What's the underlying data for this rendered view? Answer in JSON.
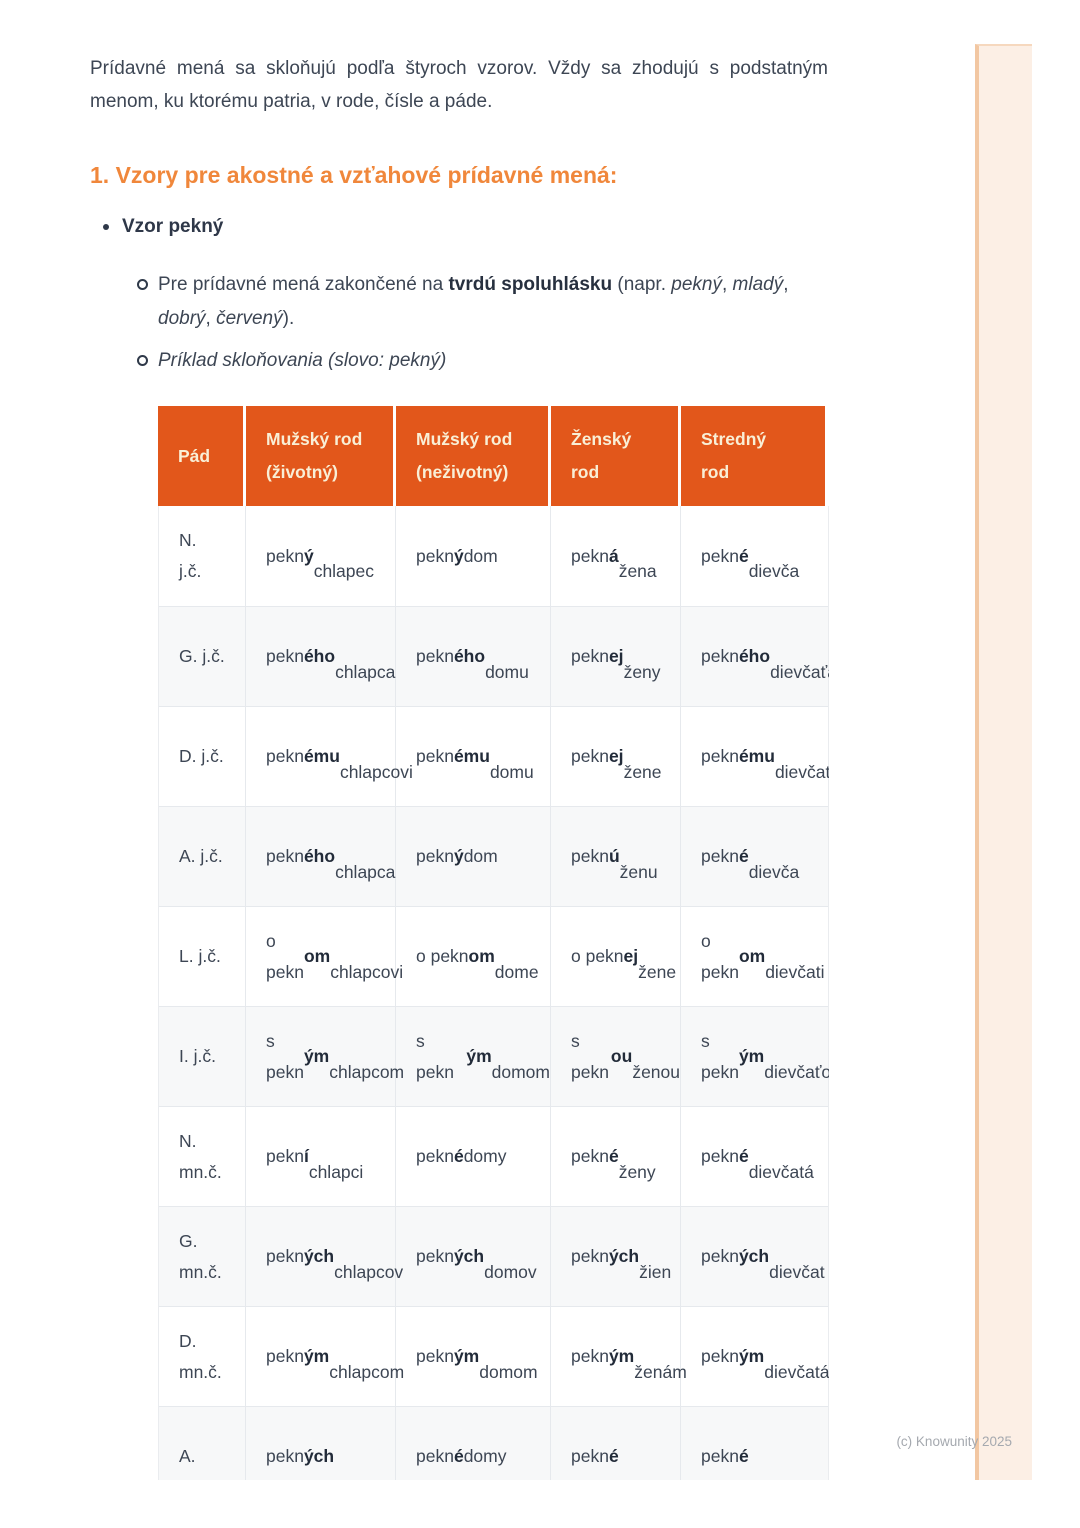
{
  "page": {
    "intro": "Prídavné mená sa skloňujú podľa štyroch vzorov. Vždy sa zhodujú s podstatným menom, ku ktorému patria, v rode, čísle a páde.",
    "heading": "1. Vzory pre akostné a vzťahové prídavné mená:",
    "bullet": "Vzor pekný",
    "sub_bullets": [
      "Pre prídavné mená zakončené na **tvrdú spoluhlásku** (napr. _pekný_, _mladý_, _dobrý_, _červený_).",
      "_Príklad skloňovania (slovo: pekný)_"
    ],
    "footer": "(c) Knowunity 2025"
  },
  "table": {
    "headers": [
      "Pád",
      "Mužský rod\n(životný)",
      "Mužský rod\n(neživotný)",
      "Ženský\nrod",
      "Stredný\nrod"
    ],
    "rows": [
      {
        "case": "N.\nj.č.",
        "cells": [
          "pekn**ý**\nchlapec",
          "pekn**ý** dom",
          "pekn**á**\nžena",
          "pekn**é**\ndievča"
        ]
      },
      {
        "case": "G. j.č.",
        "cells": [
          "pekn**ého**\nchlapca",
          "pekn**ého**\ndomu",
          "pekn**ej**\nženy",
          "pekn**ého**\ndievčaťa"
        ]
      },
      {
        "case": "D. j.č.",
        "cells": [
          "pekn**ému**\nchlapcovi",
          "pekn**ému**\ndomu",
          "pekn**ej**\nžene",
          "pekn**ému**\ndievčaťu"
        ]
      },
      {
        "case": "A. j.č.",
        "cells": [
          "pekn**ého**\nchlapca",
          "pekn**ý** dom",
          "pekn**ú**\nženu",
          "pekn**é**\ndievča"
        ]
      },
      {
        "case": "L. j.č.",
        "cells": [
          "o pekn**om**\nchlapcovi",
          "o pekn**om**\ndome",
          "o pekn**ej**\nžene",
          "o pekn**om**\ndievčati"
        ]
      },
      {
        "case": "I. j.č.",
        "cells": [
          "s pekn**ým**\nchlapcom",
          "s pekn**ým**\ndomom",
          "s pekn**ou**\nženou",
          "s pekn**ým**\ndievčaťom"
        ]
      },
      {
        "case": "N.\nmn.č.",
        "cells": [
          "pekn**í**\nchlapci",
          "pekn**é** domy",
          "pekn**é**\nženy",
          "pekn**é**\ndievčatá"
        ]
      },
      {
        "case": "G.\nmn.č.",
        "cells": [
          "pekn**ých**\nchlapcov",
          "pekn**ých**\ndomov",
          "pekn**ých**\nžien",
          "pekn**ých**\ndievčat"
        ]
      },
      {
        "case": "D.\nmn.č.",
        "cells": [
          "pekn**ým**\nchlapcom",
          "pekn**ým**\ndomom",
          "pekn**ým**\nženám",
          "pekn**ým**\ndievčatám"
        ]
      },
      {
        "case": "A.",
        "cells": [
          "pekn**ých**",
          "pekn**é** domy",
          "pekn**é**",
          "pekn**é**"
        ]
      }
    ]
  },
  "colors": {
    "table_header_orange": "#E2571B",
    "heading_orange": "#F0873B",
    "table_header_text": "#F9EFD6",
    "body_text": "#3D4654",
    "bold_ending_text": "#222B39",
    "alt_row_bg": "#F7F8F9",
    "table_border": "#E6E9ED",
    "stripe_fill": "#FCEFE5",
    "stripe_edge": "#F2C7A2",
    "footer_text": "#A5A9AF"
  }
}
